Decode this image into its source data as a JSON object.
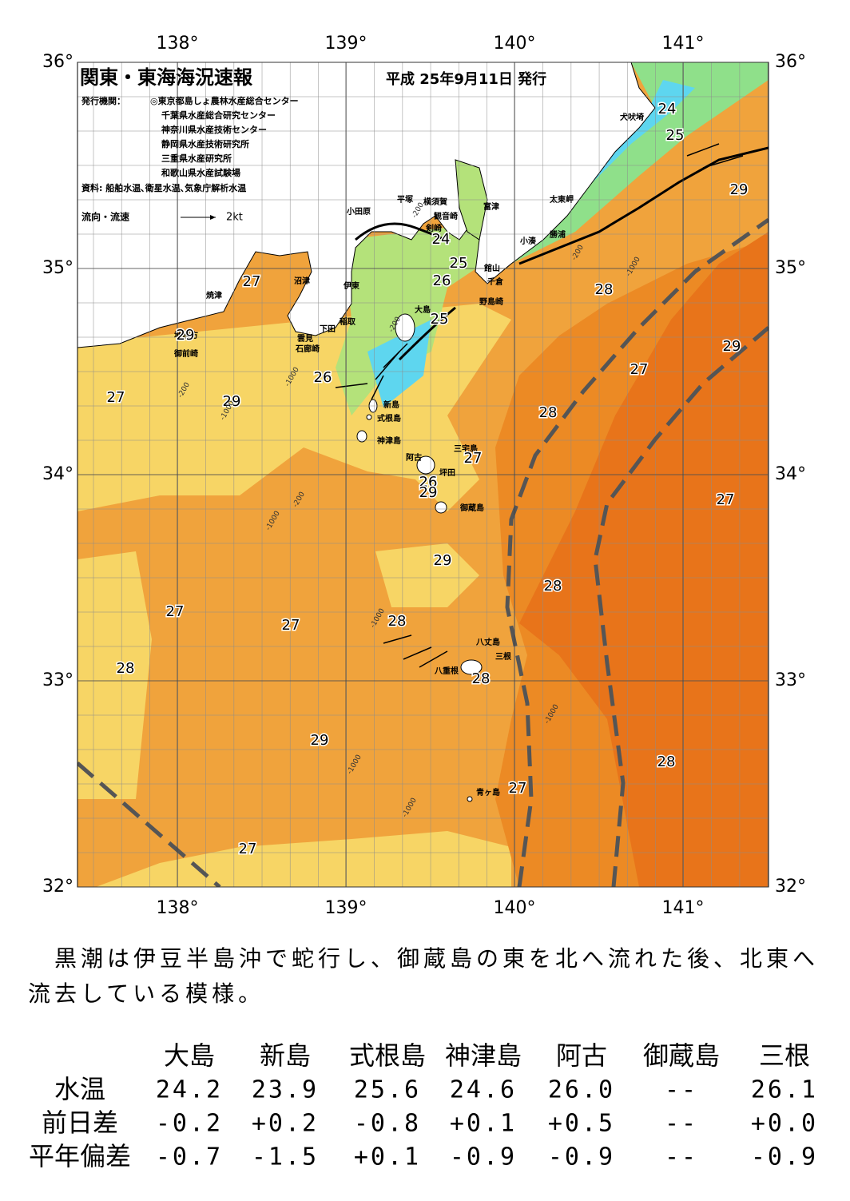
{
  "header": {
    "title": "関東・東海海況速報",
    "date": "平成 25年9月11日 発行",
    "publisher_label": "発行機関：",
    "publishers": [
      "◎東京都島しょ農林水産総合センター",
      "千葉県水産総合研究センター",
      "神奈川県水産技術センター",
      "静岡県水産技術研究所",
      "三重県水産研究所",
      "和歌山県水産試験場"
    ],
    "source": "資料: 船舶水温､衛星水温､気象庁解析水温",
    "legend_label": "流向・流速",
    "legend_scale": "2kt"
  },
  "map": {
    "lat_ticks": [
      {
        "value": 36,
        "label": "36°"
      },
      {
        "value": 35,
        "label": "35°"
      },
      {
        "value": 34,
        "label": "34°"
      },
      {
        "value": 33,
        "label": "33°"
      },
      {
        "value": 32,
        "label": "32°"
      }
    ],
    "lon_ticks": [
      {
        "value": 138,
        "label": "138°"
      },
      {
        "value": 139,
        "label": "139°"
      },
      {
        "value": 140,
        "label": "140°"
      },
      {
        "value": 141,
        "label": "141°"
      }
    ],
    "places": [
      "犬吠埼",
      "太東岬",
      "勝浦",
      "小湊",
      "富津",
      "館山",
      "千倉",
      "野島崎",
      "横須賀",
      "観音崎",
      "剣崎",
      "平塚",
      "小田原",
      "沼津",
      "伊東",
      "稲取",
      "下田",
      "雲見",
      "石廊崎",
      "焼津",
      "地頭方",
      "御前崎",
      "大島",
      "新島",
      "式根島",
      "神津島",
      "三宅島",
      "阿古",
      "坪田",
      "御蔵島",
      "八丈島",
      "三根",
      "八重根",
      "青ヶ島"
    ],
    "temperatures": [
      24,
      25,
      29,
      24,
      25,
      26,
      27,
      28,
      25,
      29,
      29,
      27,
      26,
      27,
      29,
      28,
      27,
      26,
      29,
      27,
      29,
      28,
      27,
      28,
      27,
      28,
      28,
      29,
      28,
      27,
      27
    ],
    "depths": [
      -200,
      -200,
      -200,
      -200,
      -200,
      -1000,
      -1000,
      -1000,
      -1000,
      -1000,
      -1000,
      -1000,
      -1000
    ]
  },
  "summary": "黒潮は伊豆半島沖で蛇行し、御蔵島の東を北へ流れた後、北東へ流去している模様。",
  "table": {
    "columns": [
      "大島",
      "新島",
      "式根島",
      "神津島",
      "阿古",
      "御蔵島",
      "三根"
    ],
    "rows": [
      {
        "label": "水温",
        "cells": [
          "24.2",
          "23.9",
          "25.6",
          "24.6",
          "26.0",
          "--",
          "26.1"
        ]
      },
      {
        "label": "前日差",
        "cells": [
          "-0.2",
          "+0.2",
          "-0.8",
          "+0.1",
          "+0.5",
          "--",
          "+0.0"
        ]
      },
      {
        "label": "平年偏差",
        "cells": [
          "-0.7",
          "-1.5",
          "+0.1",
          "-0.9",
          "-0.9",
          "--",
          "-0.9"
        ]
      }
    ]
  }
}
